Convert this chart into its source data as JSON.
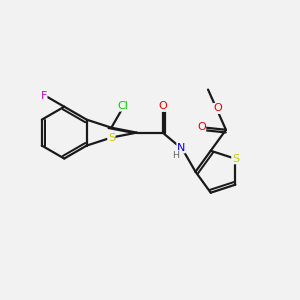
{
  "background_color": "#f2f2f2",
  "bond_color": "#1a1a1a",
  "atom_colors": {
    "Cl": "#00cc00",
    "F": "#cc00cc",
    "S": "#cccc00",
    "N": "#0000ee",
    "O": "#ee0000",
    "H": "#666666",
    "C": "#1a1a1a"
  },
  "lw": 1.6,
  "fontsize": 8.0
}
